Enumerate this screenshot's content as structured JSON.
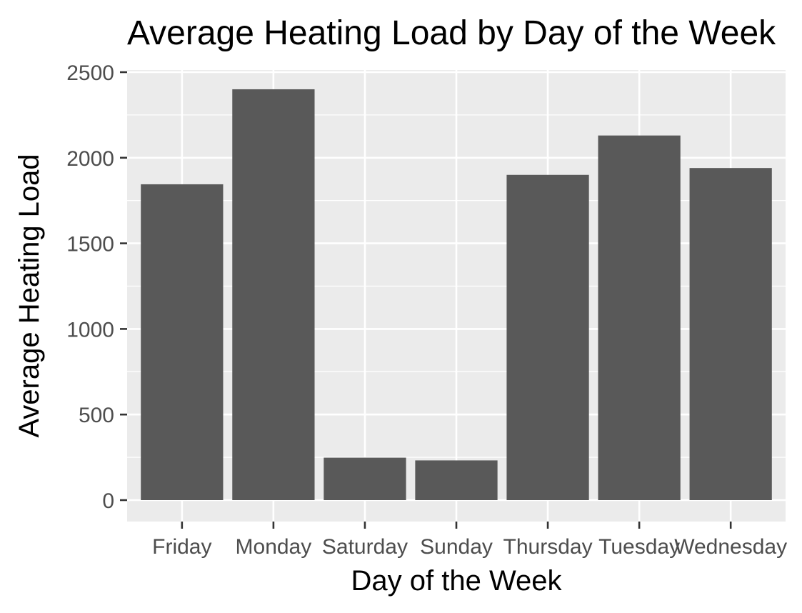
{
  "chart_data": {
    "type": "bar",
    "title": "Average Heating Load by Day of the Week",
    "xlabel": "Day of the Week",
    "ylabel": "Average Heating Load",
    "categories": [
      "Friday",
      "Monday",
      "Saturday",
      "Sunday",
      "Thursday",
      "Tuesday",
      "Wednesday"
    ],
    "values": [
      1845,
      2400,
      248,
      232,
      1900,
      2130,
      1940
    ],
    "ylim": [
      0,
      2500
    ],
    "yticks": [
      0,
      500,
      1000,
      1500,
      2000,
      2500
    ],
    "ytick_labels": [
      "0",
      "500",
      "1000",
      "1500",
      "2000",
      "2500"
    ],
    "grid": true,
    "legend": "none",
    "colors": {
      "bar": "#595959",
      "panel": "#EBEBEB",
      "grid": "#FFFFFF"
    }
  }
}
